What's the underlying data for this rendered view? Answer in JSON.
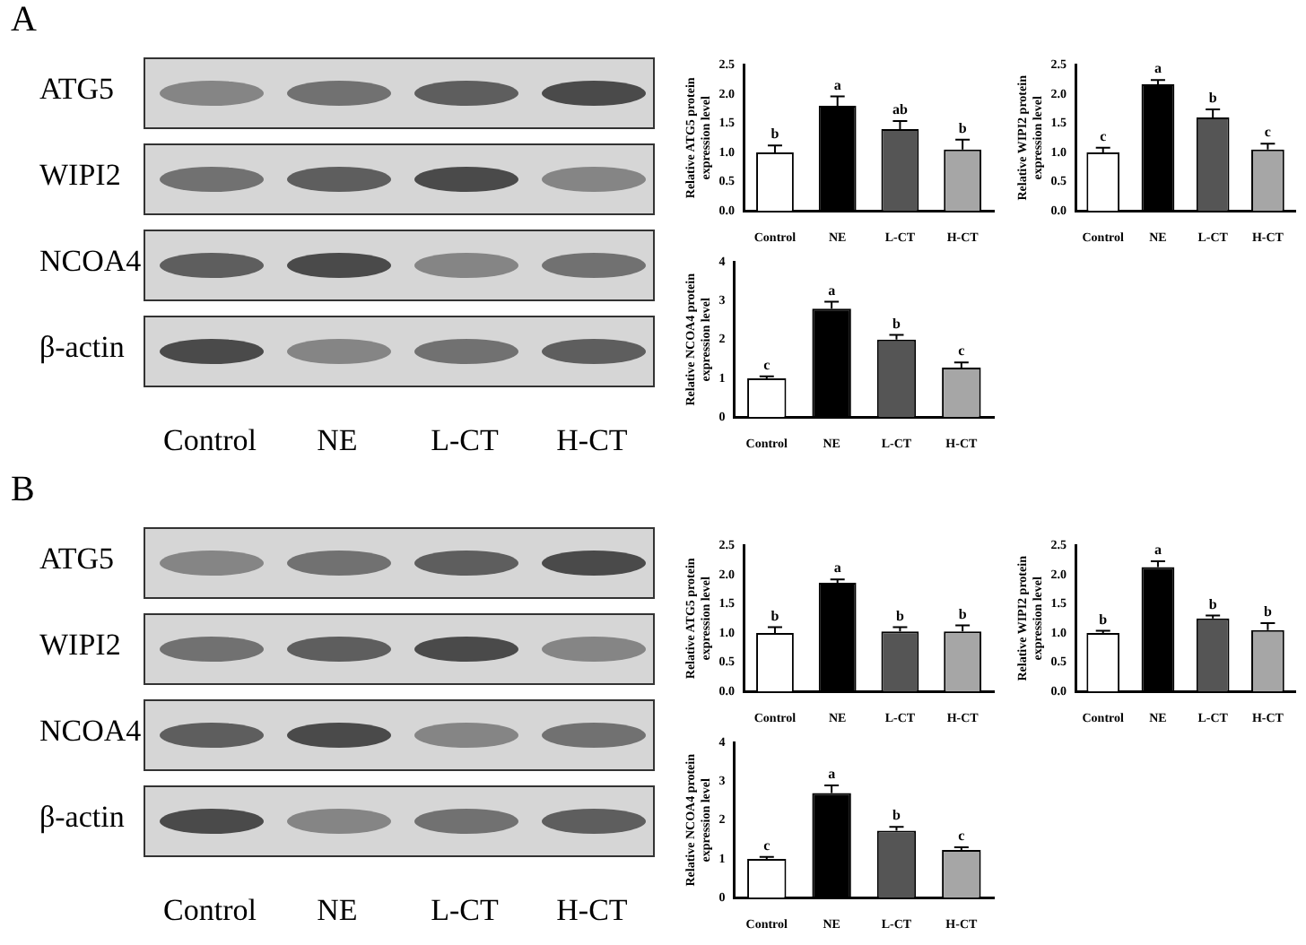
{
  "chart_data": [
    {
      "type": "other",
      "title": "A",
      "categories": [
        "Control",
        "NE",
        "L-CT",
        "H-CT"
      ],
      "y_categories": [
        "ATG5",
        "WIPI2",
        "NCOA4",
        "β-actin"
      ]
    },
    {
      "type": "bar",
      "ylabel": "Relative ATG5 protein expression level",
      "categories": [
        "Control",
        "NE",
        "L-CT",
        "H-CT"
      ],
      "values": [
        1.0,
        1.8,
        1.4,
        1.05
      ],
      "errors": [
        0.12,
        0.16,
        0.14,
        0.17
      ],
      "colors": [
        "#ffffff",
        "#000000",
        "#555555",
        "#a6a6a6"
      ],
      "ylim": [
        0,
        2.5
      ],
      "yticks": [
        {
          "value": 0,
          "label": "0.0"
        },
        {
          "value": 0.5,
          "label": "0.5"
        },
        {
          "value": 1,
          "label": "1.0"
        },
        {
          "value": 1.5,
          "label": "1.5"
        },
        {
          "value": 2,
          "label": "2.0"
        },
        {
          "value": 2.5,
          "label": "2.5"
        }
      ],
      "annotations": [
        {
          "text": "b",
          "x": "Control",
          "y": 1.12
        },
        {
          "text": "a",
          "x": "NE",
          "y": 1.96
        },
        {
          "text": "ab",
          "x": "L-CT",
          "y": 1.54
        },
        {
          "text": "b",
          "x": "H-CT",
          "y": 1.22
        }
      ]
    },
    {
      "type": "bar",
      "ylabel": "Relative WIPI2 protein expression level",
      "categories": [
        "Control",
        "NE",
        "L-CT",
        "H-CT"
      ],
      "values": [
        1.0,
        2.17,
        1.6,
        1.05
      ],
      "errors": [
        0.08,
        0.07,
        0.14,
        0.1
      ],
      "colors": [
        "#ffffff",
        "#000000",
        "#555555",
        "#a6a6a6"
      ],
      "ylim": [
        0,
        2.5
      ],
      "yticks": [
        {
          "value": 0,
          "label": "0.0"
        },
        {
          "value": 0.5,
          "label": "0.5"
        },
        {
          "value": 1,
          "label": "1.0"
        },
        {
          "value": 1.5,
          "label": "1.5"
        },
        {
          "value": 2,
          "label": "2.0"
        },
        {
          "value": 2.5,
          "label": "2.5"
        }
      ],
      "annotations": [
        {
          "text": "c",
          "x": "Control",
          "y": 1.08
        },
        {
          "text": "a",
          "x": "NE",
          "y": 2.24
        },
        {
          "text": "b",
          "x": "L-CT",
          "y": 1.74
        },
        {
          "text": "c",
          "x": "H-CT",
          "y": 1.15
        }
      ]
    },
    {
      "type": "bar",
      "ylabel": "Relative NCOA4 protein expression level",
      "categories": [
        "Control",
        "NE",
        "L-CT",
        "H-CT"
      ],
      "values": [
        1.0,
        2.8,
        2.0,
        1.28
      ],
      "errors": [
        0.05,
        0.18,
        0.12,
        0.13
      ],
      "colors": [
        "#ffffff",
        "#000000",
        "#555555",
        "#a6a6a6"
      ],
      "ylim": [
        0,
        4
      ],
      "yticks": [
        0,
        1,
        2,
        3,
        4
      ],
      "annotations": [
        {
          "text": "c",
          "x": "Control",
          "y": 1.05
        },
        {
          "text": "a",
          "x": "NE",
          "y": 2.98
        },
        {
          "text": "b",
          "x": "L-CT",
          "y": 2.12
        },
        {
          "text": "c",
          "x": "H-CT",
          "y": 1.41
        }
      ]
    },
    {
      "type": "other",
      "title": "B",
      "categories": [
        "Control",
        "NE",
        "L-CT",
        "H-CT"
      ],
      "y_categories": [
        "ATG5",
        "WIPI2",
        "NCOA4",
        "β-actin"
      ]
    },
    {
      "type": "bar",
      "ylabel": "Relative ATG5 protein expression level",
      "categories": [
        "Control",
        "NE",
        "L-CT",
        "H-CT"
      ],
      "values": [
        1.0,
        1.86,
        1.03,
        1.03
      ],
      "errors": [
        0.1,
        0.06,
        0.07,
        0.1
      ],
      "colors": [
        "#ffffff",
        "#000000",
        "#555555",
        "#a6a6a6"
      ],
      "ylim": [
        0,
        2.5
      ],
      "yticks": [
        {
          "value": 0,
          "label": "0.0"
        },
        {
          "value": 0.5,
          "label": "0.5"
        },
        {
          "value": 1,
          "label": "1.0"
        },
        {
          "value": 1.5,
          "label": "1.5"
        },
        {
          "value": 2,
          "label": "2.0"
        },
        {
          "value": 2.5,
          "label": "2.5"
        }
      ],
      "annotations": [
        {
          "text": "b",
          "x": "Control",
          "y": 1.1
        },
        {
          "text": "a",
          "x": "NE",
          "y": 1.92
        },
        {
          "text": "b",
          "x": "L-CT",
          "y": 1.1
        },
        {
          "text": "b",
          "x": "H-CT",
          "y": 1.13
        }
      ]
    },
    {
      "type": "bar",
      "ylabel": "Relative WIPI2 protein expression level",
      "categories": [
        "Control",
        "NE",
        "L-CT",
        "H-CT"
      ],
      "values": [
        1.0,
        2.13,
        1.25,
        1.05
      ],
      "errors": [
        0.04,
        0.1,
        0.05,
        0.12
      ],
      "colors": [
        "#ffffff",
        "#000000",
        "#555555",
        "#a6a6a6"
      ],
      "ylim": [
        0,
        2.5
      ],
      "yticks": [
        {
          "value": 0,
          "label": "0.0"
        },
        {
          "value": 0.5,
          "label": "0.5"
        },
        {
          "value": 1,
          "label": "1.0"
        },
        {
          "value": 1.5,
          "label": "1.5"
        },
        {
          "value": 2,
          "label": "2.0"
        },
        {
          "value": 2.5,
          "label": "2.5"
        }
      ],
      "annotations": [
        {
          "text": "b",
          "x": "Control",
          "y": 1.04
        },
        {
          "text": "a",
          "x": "NE",
          "y": 2.23
        },
        {
          "text": "b",
          "x": "L-CT",
          "y": 1.3
        },
        {
          "text": "b",
          "x": "H-CT",
          "y": 1.17
        }
      ]
    },
    {
      "type": "bar",
      "ylabel": "Relative NCOA4 protein expression level",
      "categories": [
        "Control",
        "NE",
        "L-CT",
        "H-CT"
      ],
      "values": [
        1.0,
        2.7,
        1.73,
        1.23
      ],
      "errors": [
        0.05,
        0.2,
        0.1,
        0.07
      ],
      "colors": [
        "#ffffff",
        "#000000",
        "#555555",
        "#a6a6a6"
      ],
      "ylim": [
        0,
        4
      ],
      "yticks": [
        0,
        1,
        2,
        3,
        4
      ],
      "annotations": [
        {
          "text": "c",
          "x": "Control",
          "y": 1.05
        },
        {
          "text": "a",
          "x": "NE",
          "y": 2.9
        },
        {
          "text": "b",
          "x": "L-CT",
          "y": 1.83
        },
        {
          "text": "c",
          "x": "H-CT",
          "y": 1.3
        }
      ]
    }
  ]
}
